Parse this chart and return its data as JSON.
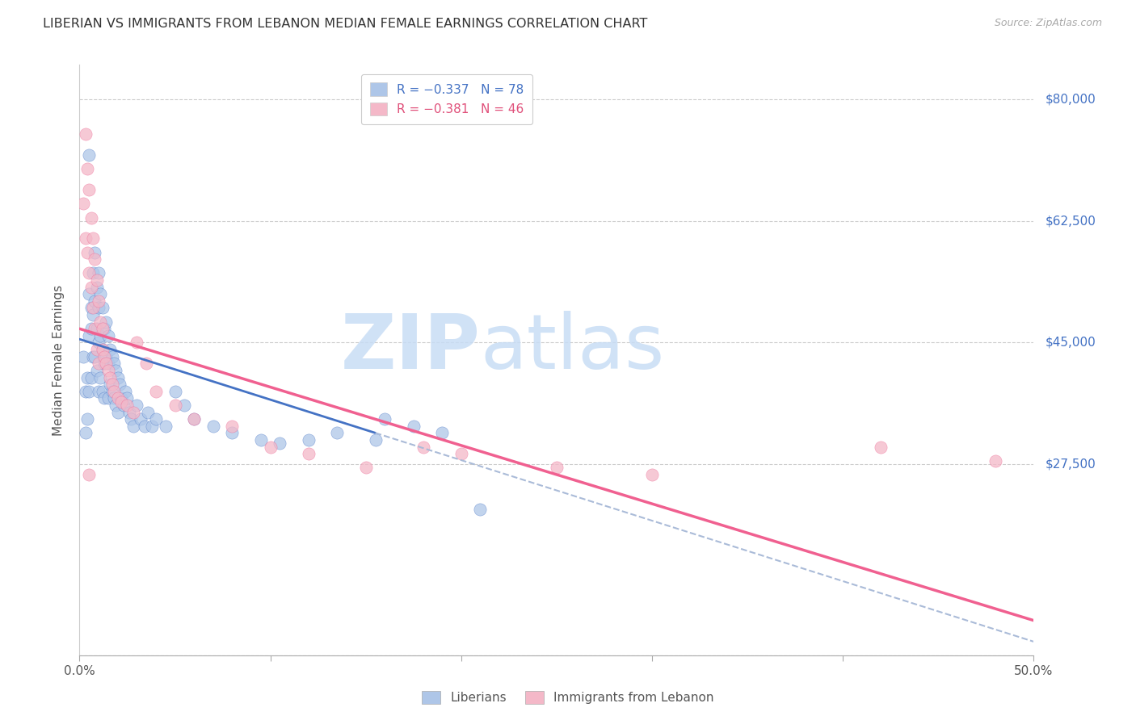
{
  "title": "LIBERIAN VS IMMIGRANTS FROM LEBANON MEDIAN FEMALE EARNINGS CORRELATION CHART",
  "source": "Source: ZipAtlas.com",
  "ylabel": "Median Female Earnings",
  "y_ticks": [
    0,
    27500,
    45000,
    62500,
    80000
  ],
  "y_tick_labels": [
    "",
    "$27,500",
    "$45,000",
    "$62,500",
    "$80,000"
  ],
  "xlim": [
    0.0,
    0.5
  ],
  "ylim": [
    0,
    85000
  ],
  "liberian_color": "#aec6e8",
  "lebanon_color": "#f4b8c8",
  "liberian_line_color": "#4472c4",
  "lebanon_line_color": "#f06090",
  "liberian_line_ext_color": "#aabbd8",
  "watermark_zip": "ZIP",
  "watermark_atlas": "atlas",
  "lib_line_x0": 0.0,
  "lib_line_y0": 45500,
  "lib_line_x1": 0.155,
  "lib_line_y1": 32000,
  "lib_line_ext_x1": 0.5,
  "lib_line_ext_y1": 9000,
  "leb_line_x0": 0.0,
  "leb_line_y0": 47000,
  "leb_line_x1": 0.5,
  "leb_line_y1": 5000,
  "liberian_x": [
    0.002,
    0.003,
    0.003,
    0.004,
    0.004,
    0.005,
    0.005,
    0.005,
    0.005,
    0.006,
    0.006,
    0.006,
    0.007,
    0.007,
    0.007,
    0.008,
    0.008,
    0.008,
    0.009,
    0.009,
    0.009,
    0.01,
    0.01,
    0.01,
    0.01,
    0.011,
    0.011,
    0.011,
    0.012,
    0.012,
    0.012,
    0.013,
    0.013,
    0.013,
    0.014,
    0.014,
    0.015,
    0.015,
    0.015,
    0.016,
    0.016,
    0.017,
    0.017,
    0.018,
    0.018,
    0.019,
    0.019,
    0.02,
    0.02,
    0.021,
    0.022,
    0.023,
    0.024,
    0.025,
    0.026,
    0.027,
    0.028,
    0.03,
    0.032,
    0.034,
    0.036,
    0.038,
    0.04,
    0.045,
    0.05,
    0.055,
    0.06,
    0.07,
    0.08,
    0.095,
    0.105,
    0.12,
    0.135,
    0.155,
    0.16,
    0.175,
    0.19,
    0.21
  ],
  "liberian_y": [
    43000,
    38000,
    32000,
    40000,
    34000,
    72000,
    52000,
    46000,
    38000,
    50000,
    47000,
    40000,
    55000,
    49000,
    43000,
    58000,
    51000,
    43000,
    53000,
    47000,
    41000,
    55000,
    50000,
    45000,
    38000,
    52000,
    46000,
    40000,
    50000,
    44000,
    38000,
    47000,
    42000,
    37000,
    48000,
    43000,
    46000,
    42000,
    37000,
    44000,
    39000,
    43000,
    38000,
    42000,
    37000,
    41000,
    36000,
    40000,
    35000,
    39000,
    37000,
    36000,
    38000,
    37000,
    35000,
    34000,
    33000,
    36000,
    34000,
    33000,
    35000,
    33000,
    34000,
    33000,
    38000,
    36000,
    34000,
    33000,
    32000,
    31000,
    30500,
    31000,
    32000,
    31000,
    34000,
    33000,
    32000,
    21000
  ],
  "lebanon_x": [
    0.002,
    0.003,
    0.003,
    0.004,
    0.004,
    0.005,
    0.005,
    0.006,
    0.006,
    0.007,
    0.007,
    0.008,
    0.008,
    0.009,
    0.009,
    0.01,
    0.01,
    0.011,
    0.012,
    0.012,
    0.013,
    0.014,
    0.015,
    0.016,
    0.017,
    0.018,
    0.02,
    0.022,
    0.025,
    0.028,
    0.03,
    0.035,
    0.04,
    0.05,
    0.06,
    0.08,
    0.1,
    0.12,
    0.15,
    0.18,
    0.2,
    0.25,
    0.3,
    0.42,
    0.48,
    0.005
  ],
  "lebanon_y": [
    65000,
    75000,
    60000,
    70000,
    58000,
    67000,
    55000,
    63000,
    53000,
    60000,
    50000,
    57000,
    47000,
    54000,
    44000,
    51000,
    42000,
    48000,
    47000,
    44000,
    43000,
    42000,
    41000,
    40000,
    39000,
    38000,
    37000,
    36500,
    36000,
    35000,
    45000,
    42000,
    38000,
    36000,
    34000,
    33000,
    30000,
    29000,
    27000,
    30000,
    29000,
    27000,
    26000,
    30000,
    28000,
    26000
  ]
}
